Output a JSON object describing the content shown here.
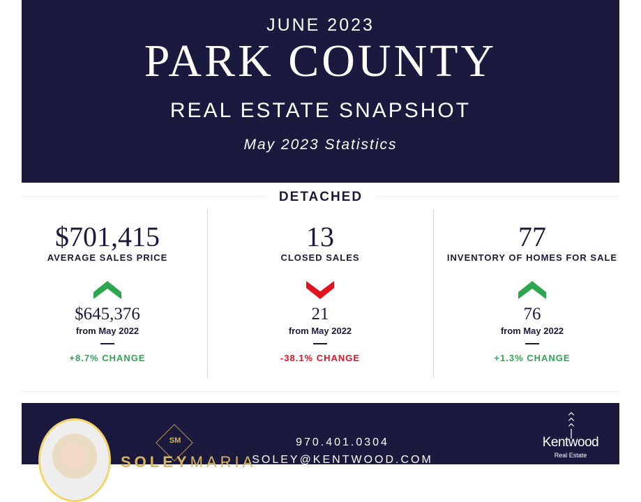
{
  "header": {
    "month": "JUNE 2023",
    "county": "PARK COUNTY",
    "subtitle": "REAL ESTATE SNAPSHOT",
    "stats": "May 2023 Statistics"
  },
  "section": {
    "title": "DETACHED"
  },
  "colors": {
    "navy": "#1b1a3e",
    "up": "#2ea64f",
    "down": "#e0141e",
    "gold": "#d9b560"
  },
  "metrics": [
    {
      "value": "$701,415",
      "label": "AVERAGE SALES PRICE",
      "trend": "up",
      "arrow_icon": "chevron-up-icon",
      "previous": "$645,376",
      "from": "from May 2022",
      "change": "+8.7% CHANGE"
    },
    {
      "value": "13",
      "label": "CLOSED SALES",
      "trend": "down",
      "arrow_icon": "chevron-down-icon",
      "previous": "21",
      "from": "from May 2022",
      "change": "-38.1% CHANGE"
    },
    {
      "value": "77",
      "label": "INVENTORY OF HOMES FOR SALE",
      "trend": "up",
      "arrow_icon": "chevron-up-icon",
      "previous": "76",
      "from": "from May 2022",
      "change": "+1.3% CHANGE"
    }
  ],
  "footer": {
    "monogram": "SM",
    "brand_first": "SOLEY",
    "brand_last": "MARIA",
    "phone": "970.401.0304",
    "email": "SOLEY@KENTWOOD.COM",
    "company": "Kentwood",
    "company_sub": "Real Estate"
  }
}
